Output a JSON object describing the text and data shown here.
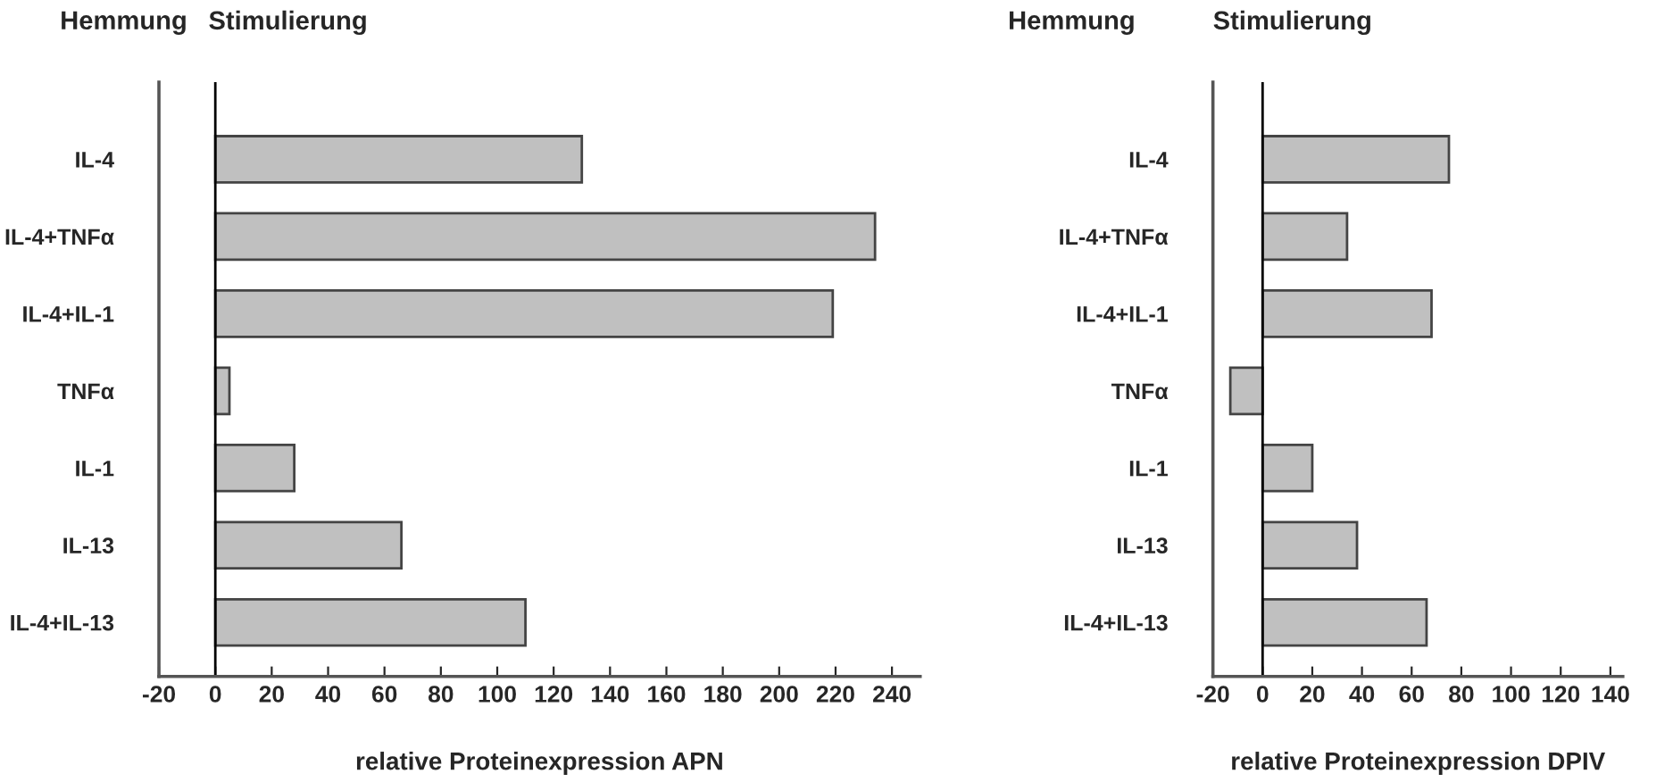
{
  "chart_data": [
    {
      "type": "bar",
      "orientation": "horizontal",
      "categories": [
        "IL-4",
        "IL-4+TNFα",
        "IL-4+IL-1",
        "TNFα",
        "IL-1",
        "IL-13",
        "IL-4+IL-13"
      ],
      "series": [
        {
          "color": "#c0c0c0",
          "values": [
            130,
            234,
            219,
            5,
            28,
            66,
            110
          ]
        }
      ],
      "xlim": [
        -20,
        250
      ],
      "xticks": [
        -20,
        0,
        20,
        40,
        60,
        80,
        100,
        120,
        140,
        160,
        180,
        200,
        220,
        240
      ],
      "xlabel": "relative Proteinexpression APN",
      "annotations": [
        "Hemmung",
        "Stimulierung"
      ],
      "ref_lines": [
        {
          "axis": "x",
          "value": 0,
          "color": "#000000"
        }
      ],
      "grid": false,
      "legend": false
    },
    {
      "type": "bar",
      "orientation": "horizontal",
      "categories": [
        "IL-4",
        "IL-4+TNFα",
        "IL-4+IL-1",
        "TNFα",
        "IL-1",
        "IL-13",
        "IL-4+IL-13"
      ],
      "series": [
        {
          "color": "#c0c0c0",
          "values": [
            75,
            34,
            68,
            -13,
            20,
            38,
            66
          ]
        }
      ],
      "xlim": [
        -20,
        145
      ],
      "xticks": [
        -20,
        0,
        20,
        40,
        60,
        80,
        100,
        120,
        140
      ],
      "xlabel": "relative Proteinexpression DPIV",
      "annotations": [
        "Hemmung",
        "Stimulierung"
      ],
      "ref_lines": [
        {
          "axis": "x",
          "value": 0,
          "color": "#000000"
        }
      ],
      "grid": false,
      "legend": false
    }
  ]
}
